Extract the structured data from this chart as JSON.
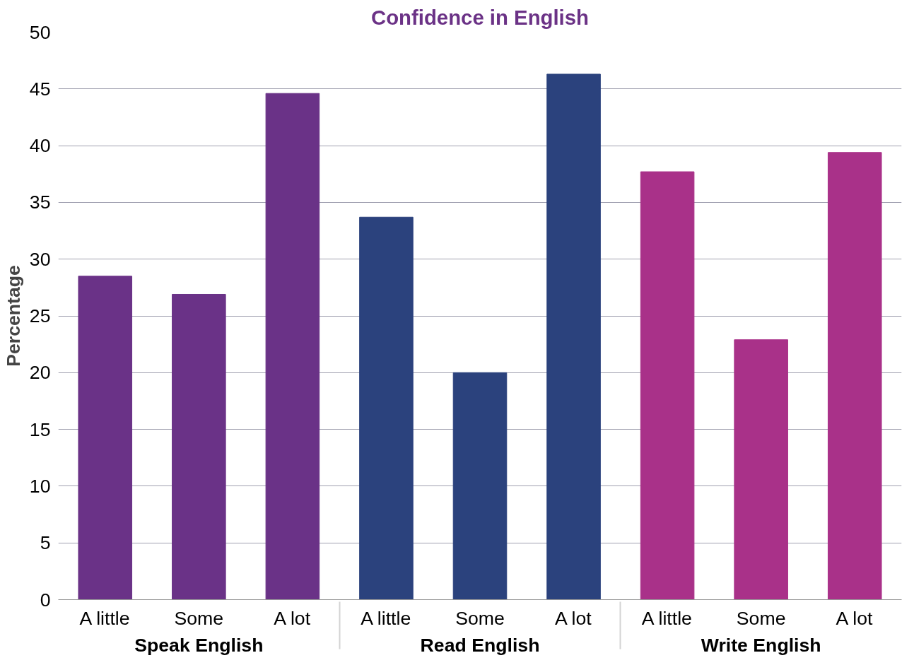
{
  "chart_data": {
    "type": "bar",
    "title": "Confidence in English",
    "ylabel": "Percentage",
    "categories": [
      "A little",
      "Some",
      "A lot",
      "A little",
      "Some",
      "A lot",
      "A little",
      "Some",
      "A lot"
    ],
    "series": [
      {
        "name": "Speak English",
        "color": "#6a3287",
        "values": [
          28.5,
          26.9,
          44.6,
          null,
          null,
          null,
          null,
          null,
          null
        ]
      },
      {
        "name": "Read English",
        "color": "#2b427d",
        "values": [
          null,
          null,
          null,
          33.7,
          20.0,
          46.3,
          null,
          null,
          null
        ]
      },
      {
        "name": "Write English",
        "color": "#a93189",
        "values": [
          null,
          null,
          null,
          null,
          null,
          null,
          37.7,
          22.9,
          39.4
        ]
      }
    ],
    "ylim": [
      0,
      50
    ],
    "yticks": [
      0,
      5,
      10,
      15,
      20,
      25,
      30,
      35,
      40,
      45,
      50
    ],
    "grid": "y",
    "legend": false
  }
}
